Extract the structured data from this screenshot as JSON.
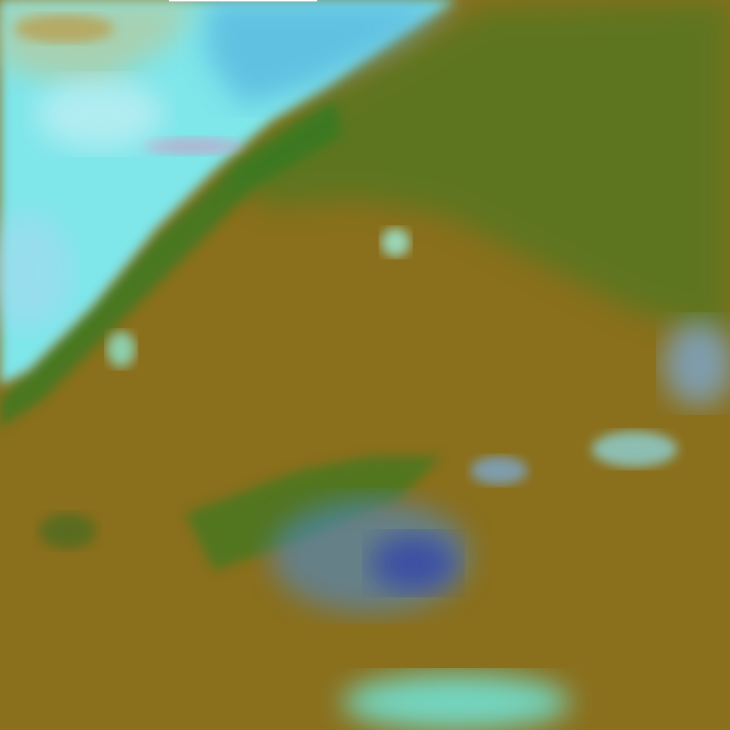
{
  "image": {
    "kind": "false-color satellite imagery",
    "colors": {
      "land": "#8a6f1c",
      "vegetation": "#2f7a22",
      "cloud_cyan": "#6ef0ea",
      "cloud_light": "#bfe6f2",
      "cloud_blue": "#4a8ee0",
      "cloud_deep": "#2a3ab0",
      "haze_pink": "#c8a0c8"
    }
  }
}
